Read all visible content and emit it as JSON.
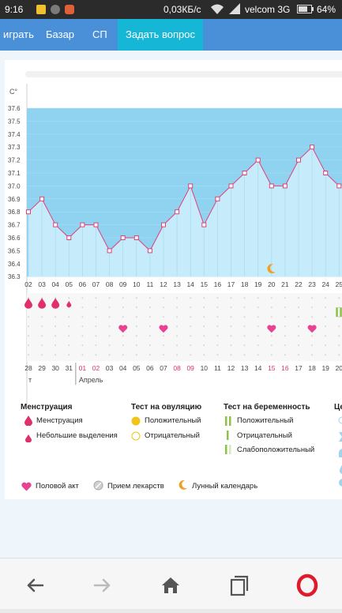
{
  "status_bar": {
    "time": "9:16",
    "network_speed": "0,03КБ/с",
    "carrier": "velcom 3G",
    "battery": "64%"
  },
  "nav_tabs": [
    {
      "label": "играть",
      "active": false
    },
    {
      "label": "Базар",
      "active": false
    },
    {
      "label": "СП",
      "active": false
    },
    {
      "label": "Задать вопрос",
      "active": true
    }
  ],
  "chart_data": {
    "type": "line",
    "unit_label": "C°",
    "y_ticks": [
      "37.6",
      "37.5",
      "37.4",
      "37.3",
      "37.2",
      "37.1",
      "37.0",
      "36.9",
      "36.8",
      "36.7",
      "36.6",
      "36.5",
      "36.4",
      "36.3"
    ],
    "ylim": [
      36.3,
      37.6
    ],
    "day_labels": [
      "02",
      "03",
      "04",
      "05",
      "06",
      "07",
      "08",
      "09",
      "10",
      "11",
      "12",
      "13",
      "14",
      "15",
      "16",
      "17",
      "18",
      "19",
      "20",
      "21",
      "22",
      "23",
      "24",
      "25"
    ],
    "values": [
      36.8,
      36.9,
      36.7,
      36.6,
      36.7,
      36.7,
      36.5,
      36.6,
      36.6,
      36.5,
      36.7,
      36.8,
      37.0,
      36.7,
      36.9,
      37.0,
      37.1,
      37.2,
      37.0,
      37.0,
      37.2,
      37.3,
      37.1,
      37.0
    ],
    "moon_day": "20",
    "menstruation_days": [
      "02",
      "03",
      "04"
    ],
    "light_spotting_days": [
      "05"
    ],
    "intercourse_days": [
      "09",
      "12",
      "20",
      "23"
    ],
    "pregnancy_test_days": [
      "25"
    ],
    "date_labels": [
      "28",
      "29",
      "30",
      "31",
      "01",
      "02",
      "03",
      "04",
      "05",
      "06",
      "07",
      "08",
      "09",
      "10",
      "11",
      "12",
      "13",
      "14",
      "15",
      "16",
      "17",
      "18",
      "19",
      "20"
    ],
    "red_dates": [
      "01",
      "02",
      "08",
      "09",
      "15",
      "16"
    ],
    "month_label": "Апрель",
    "prev_month_fragment": "т"
  },
  "legend": {
    "menstruation": {
      "title": "Менструация",
      "items": [
        "Менструация",
        "Небольшие выделения"
      ]
    },
    "ovulation_test": {
      "title": "Тест на овуляцию",
      "items": [
        "Положительный",
        "Отрицательный"
      ]
    },
    "pregnancy_test": {
      "title": "Тест на беременность",
      "items": [
        "Положительный",
        "Отрицательный",
        "Слабоположительный"
      ]
    },
    "cut_title": "Це",
    "bottom": [
      "Половой акт",
      "Прием лекарств",
      "Лунный календарь"
    ]
  },
  "colors": {
    "accent": "#4a90d9",
    "active_tab": "#16b7d6",
    "chart_line": "#e0407a",
    "chart_bg": "#8fd3f0",
    "fill": "#c6ecfb",
    "red": "#e0306a"
  }
}
